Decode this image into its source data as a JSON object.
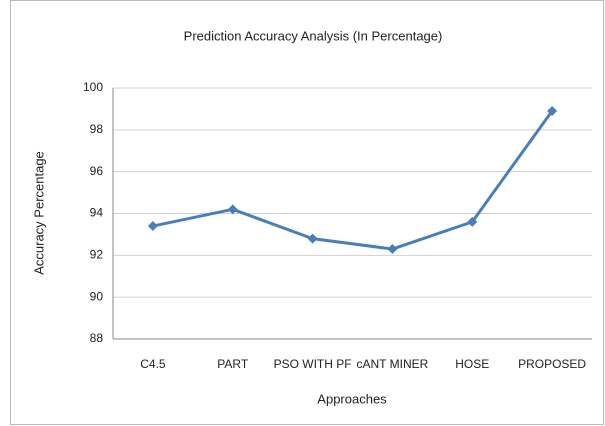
{
  "chart_data": {
    "type": "line",
    "title": "Prediction Accuracy Analysis (In Percentage)",
    "x_label": "Approaches",
    "y_label": "Accuracy Percentage",
    "categories": [
      "C4.5",
      "PART",
      "PSO WITH PF",
      "cANT MINER",
      "HOSE",
      "PROPOSED"
    ],
    "series": [
      {
        "name": "Accuracy",
        "color": "#4a7ebb",
        "values": [
          93.4,
          94.2,
          92.8,
          92.3,
          93.6,
          98.9
        ]
      }
    ],
    "ylim": [
      88,
      100
    ],
    "yticks": [
      88,
      90,
      92,
      94,
      96,
      98,
      100
    ],
    "grid": true
  }
}
